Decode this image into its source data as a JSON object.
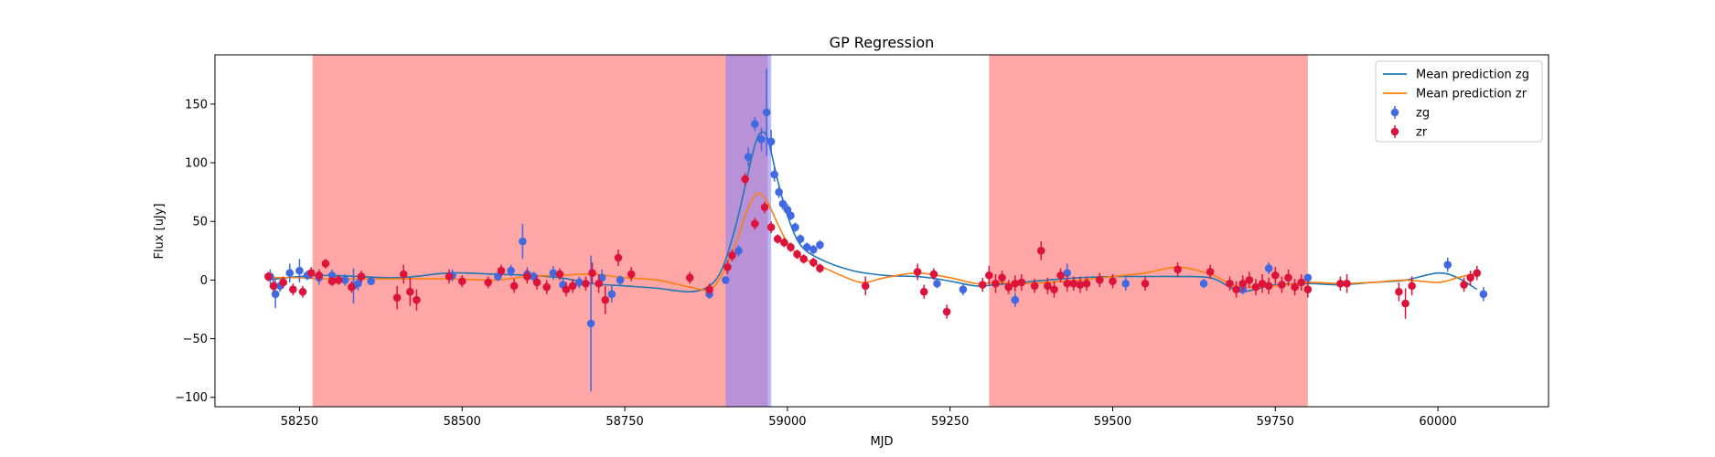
{
  "chart_data": {
    "type": "scatter",
    "title": "GP Regression",
    "xlabel": "MJD",
    "ylabel": "Flux [uJy]",
    "xlim": [
      58120,
      60170
    ],
    "ylim": [
      -108,
      192
    ],
    "xticks": [
      58250,
      58500,
      58750,
      59000,
      59250,
      59500,
      59750,
      60000
    ],
    "yticks": [
      -100,
      -50,
      0,
      50,
      100,
      150
    ],
    "grid": false,
    "legend_placement": "top-right",
    "colors": {
      "zg": "#4169e1",
      "zr": "#dc143c",
      "mean_zg": "#1f77b4",
      "mean_zr": "#ff7f0e",
      "red_span": "#ff6666",
      "blue_span": "#8080ff"
    },
    "spans": [
      {
        "x0": 58270,
        "x1": 58905,
        "color": "red"
      },
      {
        "x0": 58905,
        "x1": 58970,
        "color": "red"
      },
      {
        "x0": 58905,
        "x1": 58975,
        "color": "blue"
      },
      {
        "x0": 59310,
        "x1": 59800,
        "color": "red"
      }
    ],
    "legend": [
      {
        "label": "Mean prediction zg",
        "kind": "line",
        "key": "mean_zg"
      },
      {
        "label": "Mean prediction zr",
        "kind": "line",
        "key": "mean_zr"
      },
      {
        "label": "zg",
        "kind": "errorbar",
        "key": "zg"
      },
      {
        "label": "zr",
        "kind": "errorbar",
        "key": "zr"
      }
    ],
    "series": [
      {
        "name": "Mean prediction zg",
        "kind": "line",
        "x": [
          58200,
          58250,
          58300,
          58400,
          58480,
          58550,
          58600,
          58650,
          58700,
          58750,
          58800,
          58850,
          58880,
          58900,
          58920,
          58935,
          58950,
          58960,
          58970,
          58985,
          59000,
          59020,
          59050,
          59100,
          59150,
          59200,
          59230,
          59260,
          59290,
          59320,
          59360,
          59400,
          59450,
          59500,
          59550,
          59600,
          59650,
          59680,
          59700,
          59750,
          59800,
          59850,
          59900,
          59950,
          60000,
          60030,
          60060
        ],
        "y": [
          0,
          3,
          4,
          2,
          6,
          5,
          4,
          2,
          -3,
          -5,
          -7,
          -10,
          -5,
          10,
          45,
          80,
          115,
          126,
          120,
          85,
          55,
          30,
          18,
          8,
          4,
          3,
          1,
          -2,
          -5,
          -4,
          -2,
          0,
          2,
          3,
          3,
          3,
          2,
          -6,
          -10,
          -4,
          -3,
          -4,
          -2,
          0,
          6,
          2,
          -8
        ]
      },
      {
        "name": "Mean prediction zr",
        "kind": "line",
        "x": [
          58200,
          58250,
          58300,
          58400,
          58480,
          58550,
          58600,
          58650,
          58700,
          58750,
          58800,
          58850,
          58880,
          58900,
          58920,
          58935,
          58950,
          58960,
          58970,
          58985,
          59000,
          59020,
          59050,
          59100,
          59120,
          59150,
          59200,
          59250,
          59290,
          59320,
          59360,
          59400,
          59450,
          59500,
          59550,
          59600,
          59650,
          59680,
          59700,
          59750,
          59800,
          59850,
          59900,
          59950,
          60000,
          60030,
          60060
        ],
        "y": [
          2,
          2,
          1,
          1,
          1,
          0,
          3,
          4,
          5,
          2,
          0,
          -6,
          -8,
          5,
          30,
          55,
          72,
          73,
          66,
          48,
          32,
          20,
          12,
          0,
          -2,
          2,
          6,
          2,
          -3,
          -2,
          -3,
          -2,
          0,
          3,
          6,
          11,
          5,
          -3,
          -6,
          -5,
          -2,
          -3,
          -2,
          0,
          -2,
          2,
          6
        ]
      },
      {
        "name": "zg",
        "kind": "errorbar",
        "x": [
          58205,
          58213,
          58220,
          58235,
          58250,
          58262,
          58280,
          58300,
          58320,
          58333,
          58340,
          58360,
          58485,
          58555,
          58575,
          58593,
          58600,
          58610,
          58640,
          58655,
          58680,
          58698,
          58715,
          58730,
          58743,
          58880,
          58905,
          58925,
          58940,
          58950,
          58960,
          58968,
          58975,
          58980,
          58987,
          58993,
          59000,
          59005,
          59012,
          59020,
          59030,
          59040,
          59050,
          59230,
          59270,
          59350,
          59430,
          59520,
          59640,
          59700,
          59740,
          59800,
          60015,
          60070
        ],
        "y": [
          3,
          -12,
          -5,
          6,
          8,
          4,
          2,
          4,
          0,
          -5,
          -3,
          -1,
          4,
          3,
          8,
          33,
          5,
          3,
          6,
          -4,
          -2,
          -37,
          2,
          -12,
          0,
          -12,
          0,
          25,
          105,
          133,
          120,
          143,
          118,
          90,
          75,
          65,
          60,
          55,
          45,
          35,
          28,
          26,
          30,
          -3,
          -8,
          -17,
          6,
          -3,
          -3,
          -8,
          10,
          2,
          13,
          -12
        ],
        "err": [
          6,
          12,
          5,
          8,
          10,
          4,
          6,
          5,
          5,
          15,
          6,
          3,
          5,
          4,
          5,
          15,
          6,
          4,
          6,
          5,
          5,
          58,
          7,
          7,
          4,
          4,
          3,
          5,
          8,
          6,
          10,
          37,
          10,
          6,
          5,
          5,
          5,
          4,
          4,
          4,
          4,
          4,
          4,
          4,
          5,
          6,
          8,
          6,
          4,
          4,
          5,
          3,
          6,
          6
        ]
      },
      {
        "name": "zr",
        "kind": "errorbar",
        "x": [
          58202,
          58210,
          58225,
          58240,
          58255,
          58268,
          58280,
          58290,
          58300,
          58310,
          58330,
          58345,
          58400,
          58410,
          58420,
          58430,
          58480,
          58500,
          58540,
          58560,
          58580,
          58600,
          58615,
          58630,
          58650,
          58660,
          58670,
          58690,
          58700,
          58710,
          58720,
          58740,
          58760,
          58850,
          58880,
          58908,
          58915,
          58935,
          58950,
          58965,
          58975,
          58985,
          58995,
          59005,
          59015,
          59025,
          59040,
          59050,
          59120,
          59200,
          59210,
          59225,
          59245,
          59300,
          59310,
          59320,
          59330,
          59340,
          59350,
          59360,
          59380,
          59390,
          59400,
          59410,
          59420,
          59430,
          59440,
          59450,
          59460,
          59480,
          59500,
          59550,
          59600,
          59650,
          59680,
          59690,
          59700,
          59710,
          59720,
          59730,
          59740,
          59750,
          59760,
          59770,
          59780,
          59790,
          59800,
          59850,
          59860,
          59940,
          59950,
          59960,
          60040,
          60050,
          60060
        ],
        "y": [
          3,
          -5,
          -2,
          -8,
          -10,
          6,
          4,
          14,
          -1,
          0,
          -6,
          3,
          -15,
          5,
          -10,
          -17,
          3,
          -1,
          -2,
          8,
          -5,
          3,
          -2,
          -6,
          5,
          -8,
          -5,
          -3,
          6,
          -3,
          -17,
          19,
          5,
          2,
          -8,
          11,
          21,
          86,
          48,
          62,
          45,
          35,
          32,
          28,
          22,
          18,
          15,
          10,
          -5,
          7,
          -10,
          5,
          -27,
          -4,
          4,
          -3,
          2,
          -6,
          -3,
          -2,
          -5,
          25,
          -5,
          -8,
          4,
          -3,
          -3,
          -4,
          -3,
          0,
          -1,
          -3,
          9,
          7,
          -3,
          -8,
          -3,
          0,
          -6,
          -3,
          -5,
          4,
          -4,
          2,
          -6,
          -2,
          -8,
          -3,
          -3,
          -10,
          -20,
          -5,
          -4,
          2,
          6
        ],
        "err": [
          4,
          5,
          5,
          5,
          5,
          5,
          5,
          4,
          4,
          4,
          5,
          5,
          10,
          8,
          12,
          9,
          6,
          5,
          5,
          5,
          6,
          6,
          6,
          6,
          5,
          6,
          6,
          6,
          9,
          8,
          12,
          7,
          6,
          5,
          5,
          6,
          5,
          5,
          5,
          5,
          5,
          4,
          4,
          4,
          4,
          4,
          4,
          4,
          8,
          7,
          6,
          5,
          6,
          6,
          8,
          8,
          6,
          6,
          7,
          7,
          6,
          8,
          7,
          7,
          6,
          7,
          6,
          7,
          6,
          6,
          6,
          6,
          6,
          6,
          6,
          7,
          7,
          7,
          7,
          8,
          7,
          7,
          7,
          7,
          7,
          7,
          7,
          6,
          8,
          8,
          13,
          8,
          6,
          6,
          6
        ]
      }
    ]
  }
}
